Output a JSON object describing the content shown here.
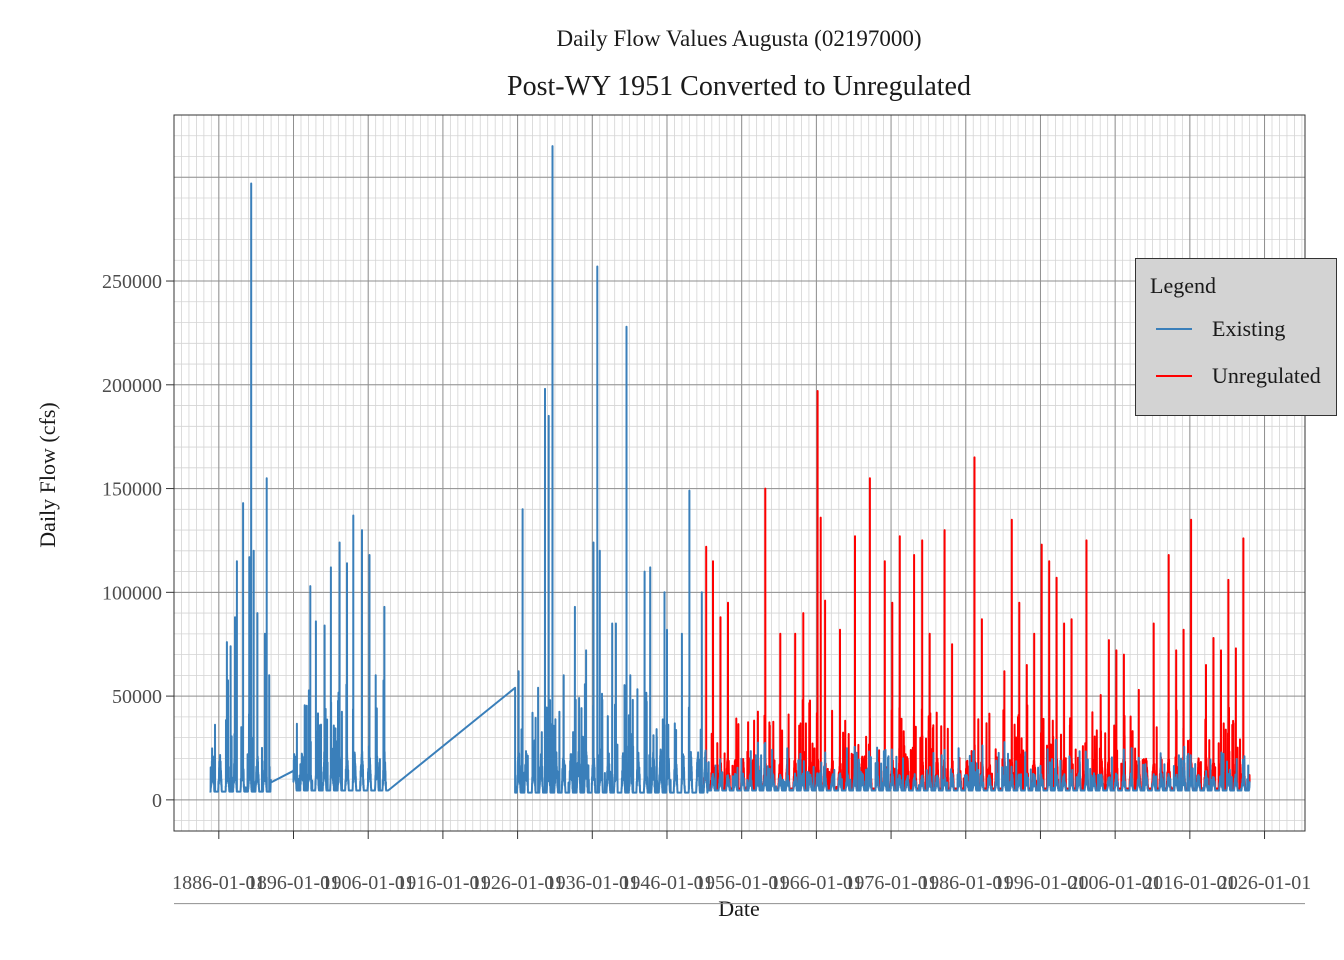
{
  "chart_data": {
    "type": "line",
    "title": "Daily Flow Values Augusta (02197000)",
    "subtitle": "Post-WY 1951 Converted to Unregulated",
    "xlabel": "Date",
    "ylabel": "Daily Flow (cfs)",
    "x_axis_type": "date",
    "x_ticks": [
      "1886-01-01",
      "1896-01-01",
      "1906-01-01",
      "1916-01-01",
      "1926-01-01",
      "1936-01-01",
      "1946-01-01",
      "1956-01-01",
      "1966-01-01",
      "1976-01-01",
      "1986-01-01",
      "1996-01-01",
      "2006-01-01",
      "2016-01-01",
      "2026-01-01"
    ],
    "xlim": [
      "1880-01-01",
      "2031-06-01"
    ],
    "y_ticks": [
      0,
      50000,
      100000,
      150000,
      200000,
      250000
    ],
    "ylim": [
      -15000,
      330000
    ],
    "grid": true,
    "legend": {
      "title": "Legend",
      "placement": "right"
    },
    "series": [
      {
        "name": "Existing",
        "color": "#3a7fba",
        "peaks": [
          [
            "1887-02-01",
            76000
          ],
          [
            "1887-08-01",
            74000
          ],
          [
            "1888-03-01",
            88000
          ],
          [
            "1888-06-01",
            115000
          ],
          [
            "1889-04-01",
            143000
          ],
          [
            "1890-02-01",
            117000
          ],
          [
            "1890-05-01",
            297000
          ],
          [
            "1890-09-01",
            120000
          ],
          [
            "1891-03-01",
            90000
          ],
          [
            "1892-03-01",
            80000
          ],
          [
            "1892-06-01",
            155000
          ],
          [
            "1892-10-01",
            60000
          ],
          [
            "1898-04-01",
            103000
          ],
          [
            "1899-01-01",
            86000
          ],
          [
            "1900-03-01",
            84000
          ],
          [
            "1901-01-01",
            112000
          ],
          [
            "1902-03-01",
            124000
          ],
          [
            "1903-03-01",
            114000
          ],
          [
            "1904-01-01",
            137000
          ],
          [
            "1905-03-01",
            130000
          ],
          [
            "1906-03-01",
            118000
          ],
          [
            "1907-01-01",
            60000
          ],
          [
            "1908-03-01",
            93000
          ],
          [
            "1926-09-01",
            140000
          ],
          [
            "1928-01-01",
            42000
          ],
          [
            "1928-10-01",
            54000
          ],
          [
            "1929-09-01",
            198000
          ],
          [
            "1930-03-01",
            185000
          ],
          [
            "1930-09-01",
            315000
          ],
          [
            "1932-03-01",
            60000
          ],
          [
            "1933-09-01",
            93000
          ],
          [
            "1935-03-01",
            72000
          ],
          [
            "1936-03-01",
            124000
          ],
          [
            "1936-09-01",
            257000
          ],
          [
            "1937-01-01",
            120000
          ],
          [
            "1938-09-01",
            85000
          ],
          [
            "1939-03-01",
            85000
          ],
          [
            "1940-08-01",
            228000
          ],
          [
            "1941-02-01",
            60000
          ],
          [
            "1943-01-01",
            110000
          ],
          [
            "1943-10-01",
            112000
          ],
          [
            "1945-09-01",
            100000
          ],
          [
            "1946-01-01",
            82000
          ],
          [
            "1948-01-01",
            80000
          ],
          [
            "1949-01-01",
            149000
          ],
          [
            "1950-09-01",
            100000
          ]
        ]
      },
      {
        "name": "Unregulated",
        "color": "#ff0000",
        "peaks": [
          [
            "1951-04-01",
            122000
          ],
          [
            "1952-03-01",
            115000
          ],
          [
            "1953-03-01",
            88000
          ],
          [
            "1954-03-01",
            95000
          ],
          [
            "1959-03-01",
            150000
          ],
          [
            "1961-03-01",
            80000
          ],
          [
            "1963-03-01",
            80000
          ],
          [
            "1964-04-01",
            90000
          ],
          [
            "1966-03-01",
            197000
          ],
          [
            "1966-08-01",
            136000
          ],
          [
            "1967-03-01",
            96000
          ],
          [
            "1969-03-01",
            82000
          ],
          [
            "1971-03-01",
            127000
          ],
          [
            "1973-03-01",
            155000
          ],
          [
            "1975-03-01",
            115000
          ],
          [
            "1976-03-01",
            95000
          ],
          [
            "1977-03-01",
            127000
          ],
          [
            "1979-02-01",
            118000
          ],
          [
            "1980-03-01",
            125000
          ],
          [
            "1981-03-01",
            80000
          ],
          [
            "1983-03-01",
            130000
          ],
          [
            "1984-03-01",
            75000
          ],
          [
            "1987-03-01",
            165000
          ],
          [
            "1988-03-01",
            87000
          ],
          [
            "1991-03-01",
            62000
          ],
          [
            "1992-03-01",
            135000
          ],
          [
            "1993-03-01",
            95000
          ],
          [
            "1994-03-01",
            65000
          ],
          [
            "1995-03-01",
            80000
          ],
          [
            "1996-03-01",
            123000
          ],
          [
            "1997-03-01",
            115000
          ],
          [
            "1998-03-01",
            107000
          ],
          [
            "1999-03-01",
            85000
          ],
          [
            "2000-03-01",
            87000
          ],
          [
            "2002-03-01",
            125000
          ],
          [
            "2005-03-01",
            77000
          ],
          [
            "2006-03-01",
            72000
          ],
          [
            "2007-03-01",
            70000
          ],
          [
            "2009-03-01",
            53000
          ],
          [
            "2011-03-01",
            85000
          ],
          [
            "2013-03-01",
            118000
          ],
          [
            "2014-03-01",
            72000
          ],
          [
            "2015-03-01",
            82000
          ],
          [
            "2016-03-01",
            135000
          ],
          [
            "2018-03-01",
            65000
          ],
          [
            "2019-03-01",
            78000
          ],
          [
            "2020-03-01",
            72000
          ],
          [
            "2021-03-01",
            106000
          ],
          [
            "2022-03-01",
            73000
          ],
          [
            "2023-03-01",
            126000
          ]
        ]
      }
    ]
  }
}
